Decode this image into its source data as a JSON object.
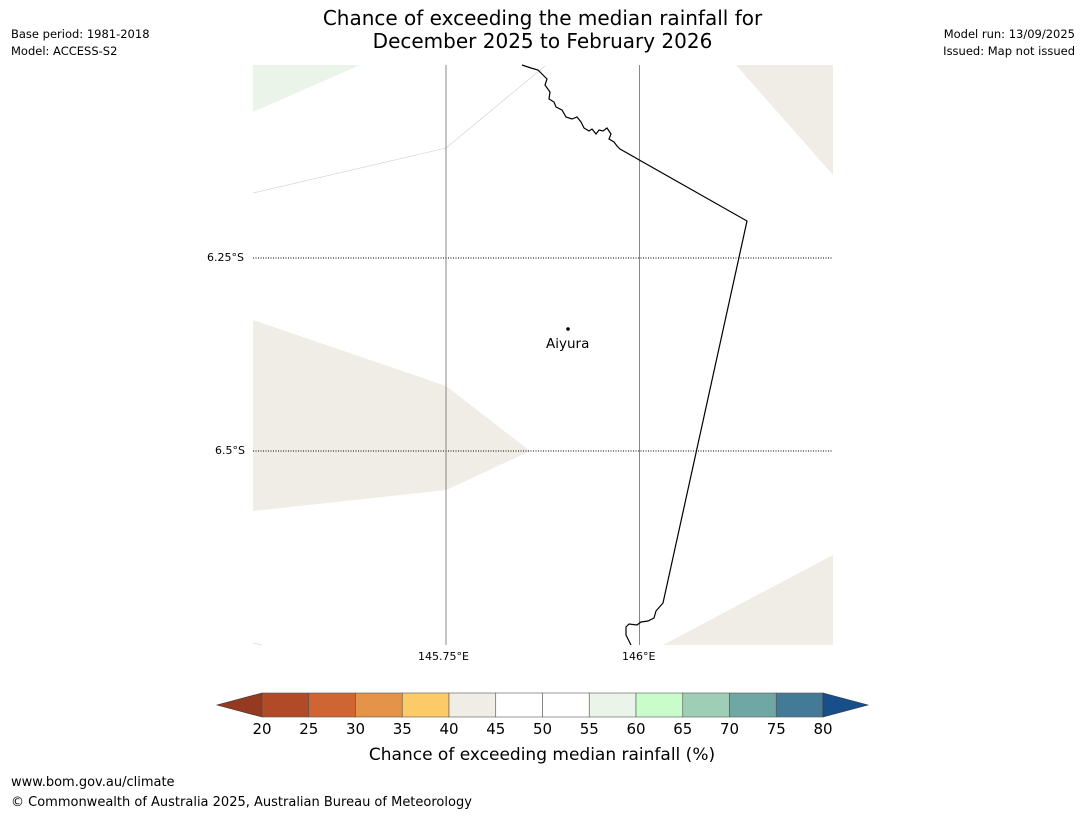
{
  "title": {
    "line1": "Chance of exceeding the median rainfall for",
    "line2": "December 2025 to February 2026"
  },
  "meta_left": {
    "base_period": "Base period: 1981-2018",
    "model": "Model: ACCESS-S2"
  },
  "meta_right": {
    "model_run": "Model run: 13/09/2025",
    "issued": "Issued: Map not issued"
  },
  "map": {
    "longitude_labels": [
      "145.75°E",
      "146°E"
    ],
    "latitude_labels": [
      "6.25°S",
      "6.5°S"
    ],
    "place_name": "Aiyura"
  },
  "colorbar": {
    "ticks": [
      "20",
      "25",
      "30",
      "35",
      "40",
      "45",
      "50",
      "55",
      "60",
      "65",
      "70",
      "75",
      "80"
    ],
    "colors": [
      "#b04a27",
      "#cf6532",
      "#e39448",
      "#fdca68",
      "#f0ece6",
      "#ffffff",
      "#ffffff",
      "#eaf4e9",
      "#c8fcca",
      "#9ecfb6",
      "#6fa7a5",
      "#427a98"
    ],
    "under_color": "#953a21",
    "over_color": "#174f8a",
    "label": "Chance of exceeding median rainfall (%)"
  },
  "footer": {
    "url": "www.bom.gov.au/climate",
    "copyright": "© Commonwealth of Australia 2025, Australian Bureau of Meteorology"
  }
}
